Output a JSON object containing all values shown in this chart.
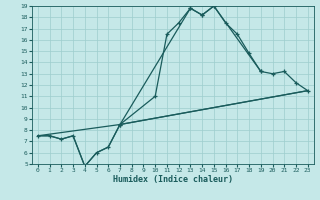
{
  "xlabel": "Humidex (Indice chaleur)",
  "xlim": [
    -0.5,
    23.5
  ],
  "ylim": [
    5,
    19
  ],
  "xticks": [
    0,
    1,
    2,
    3,
    4,
    5,
    6,
    7,
    8,
    9,
    10,
    11,
    12,
    13,
    14,
    15,
    16,
    17,
    18,
    19,
    20,
    21,
    22,
    23
  ],
  "yticks": [
    5,
    6,
    7,
    8,
    9,
    10,
    11,
    12,
    13,
    14,
    15,
    16,
    17,
    18,
    19
  ],
  "bg_color": "#c5e8e8",
  "grid_color": "#9ecece",
  "line_color": "#1a5c5c",
  "curve1_x": [
    0,
    1,
    2,
    3,
    4,
    5,
    6,
    7,
    10,
    11,
    12,
    13,
    14,
    15,
    16,
    17,
    18,
    19
  ],
  "curve1_y": [
    7.5,
    7.5,
    7.2,
    7.5,
    4.8,
    6.0,
    6.5,
    8.5,
    11.0,
    16.5,
    17.5,
    18.8,
    18.2,
    19.0,
    17.5,
    16.5,
    14.8,
    13.2
  ],
  "curve2_x": [
    0,
    1,
    2,
    3,
    4,
    5,
    6,
    7,
    23
  ],
  "curve2_y": [
    7.5,
    7.5,
    7.2,
    7.5,
    4.8,
    6.0,
    6.5,
    8.5,
    11.5
  ],
  "curve3_x": [
    0,
    7,
    23
  ],
  "curve3_y": [
    7.5,
    8.5,
    11.5
  ],
  "curve4_x": [
    7,
    13,
    14,
    15,
    19,
    20,
    21,
    22,
    23
  ],
  "curve4_y": [
    8.5,
    18.8,
    18.2,
    19.0,
    13.2,
    13.0,
    13.2,
    12.2,
    11.5
  ]
}
